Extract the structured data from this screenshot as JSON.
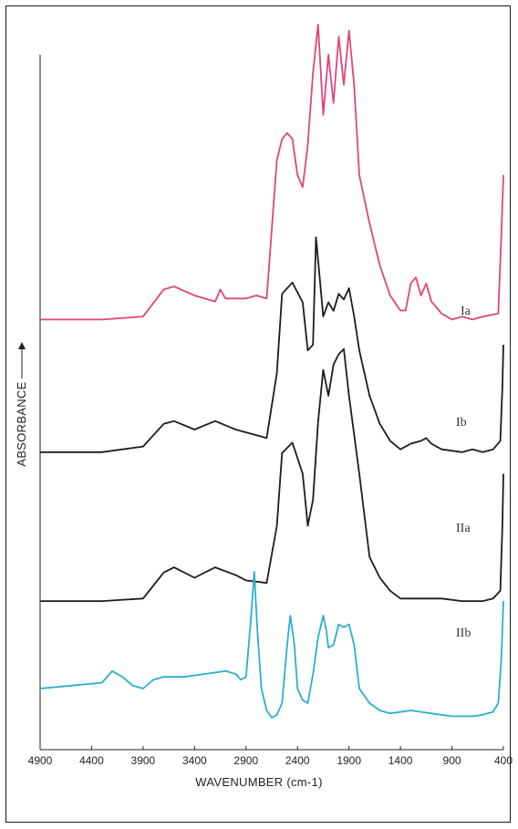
{
  "chart_data": {
    "type": "line",
    "xlabel": "WAVENUMBER (cm-1)",
    "ylabel": "ABSORBANCE",
    "x_reversed": true,
    "xlim": [
      4900,
      400
    ],
    "x_ticks": [
      4900,
      4400,
      3900,
      3400,
      2900,
      2400,
      1900,
      1400,
      900,
      400
    ],
    "y_ticks_shown": false,
    "grid": false,
    "series": [
      {
        "name": "Ia",
        "color": "#e0457a",
        "points": [
          [
            4900,
            0.02
          ],
          [
            4300,
            0.02
          ],
          [
            3900,
            0.03
          ],
          [
            3700,
            0.12
          ],
          [
            3600,
            0.13
          ],
          [
            3400,
            0.1
          ],
          [
            3200,
            0.08
          ],
          [
            3150,
            0.12
          ],
          [
            3100,
            0.09
          ],
          [
            2900,
            0.09
          ],
          [
            2800,
            0.1
          ],
          [
            2700,
            0.09
          ],
          [
            2600,
            0.55
          ],
          [
            2550,
            0.62
          ],
          [
            2500,
            0.64
          ],
          [
            2450,
            0.62
          ],
          [
            2400,
            0.5
          ],
          [
            2350,
            0.46
          ],
          [
            2300,
            0.6
          ],
          [
            2250,
            0.84
          ],
          [
            2200,
            1.0
          ],
          [
            2150,
            0.7
          ],
          [
            2100,
            0.9
          ],
          [
            2050,
            0.74
          ],
          [
            2000,
            0.96
          ],
          [
            1950,
            0.8
          ],
          [
            1900,
            0.98
          ],
          [
            1850,
            0.8
          ],
          [
            1800,
            0.5
          ],
          [
            1700,
            0.34
          ],
          [
            1600,
            0.2
          ],
          [
            1500,
            0.1
          ],
          [
            1400,
            0.05
          ],
          [
            1350,
            0.05
          ],
          [
            1300,
            0.14
          ],
          [
            1250,
            0.16
          ],
          [
            1200,
            0.1
          ],
          [
            1150,
            0.14
          ],
          [
            1100,
            0.08
          ],
          [
            1000,
            0.04
          ],
          [
            900,
            0.02
          ],
          [
            800,
            0.03
          ],
          [
            700,
            0.02
          ],
          [
            600,
            0.03
          ],
          [
            450,
            0.04
          ],
          [
            420,
            0.3
          ],
          [
            400,
            0.5
          ]
        ]
      },
      {
        "name": "Ib",
        "color": "#1c1c1c",
        "points": [
          [
            4900,
            0.02
          ],
          [
            4300,
            0.02
          ],
          [
            3900,
            0.04
          ],
          [
            3700,
            0.12
          ],
          [
            3600,
            0.13
          ],
          [
            3400,
            0.1
          ],
          [
            3200,
            0.13
          ],
          [
            3000,
            0.1
          ],
          [
            2900,
            0.09
          ],
          [
            2700,
            0.07
          ],
          [
            2600,
            0.3
          ],
          [
            2550,
            0.58
          ],
          [
            2450,
            0.62
          ],
          [
            2350,
            0.55
          ],
          [
            2300,
            0.38
          ],
          [
            2250,
            0.4
          ],
          [
            2220,
            0.78
          ],
          [
            2200,
            0.7
          ],
          [
            2150,
            0.5
          ],
          [
            2100,
            0.55
          ],
          [
            2050,
            0.52
          ],
          [
            2000,
            0.58
          ],
          [
            1950,
            0.56
          ],
          [
            1900,
            0.6
          ],
          [
            1850,
            0.5
          ],
          [
            1800,
            0.38
          ],
          [
            1700,
            0.22
          ],
          [
            1600,
            0.12
          ],
          [
            1500,
            0.06
          ],
          [
            1400,
            0.03
          ],
          [
            1300,
            0.05
          ],
          [
            1200,
            0.06
          ],
          [
            1150,
            0.07
          ],
          [
            1100,
            0.05
          ],
          [
            1000,
            0.03
          ],
          [
            800,
            0.02
          ],
          [
            700,
            0.03
          ],
          [
            600,
            0.02
          ],
          [
            500,
            0.03
          ],
          [
            430,
            0.06
          ],
          [
            410,
            0.25
          ],
          [
            400,
            0.4
          ]
        ]
      },
      {
        "name": "IIa",
        "color": "#1c1c1c",
        "points": [
          [
            4900,
            0.01
          ],
          [
            4300,
            0.01
          ],
          [
            3900,
            0.02
          ],
          [
            3700,
            0.12
          ],
          [
            3600,
            0.14
          ],
          [
            3400,
            0.1
          ],
          [
            3200,
            0.14
          ],
          [
            3000,
            0.11
          ],
          [
            2900,
            0.09
          ],
          [
            2700,
            0.08
          ],
          [
            2600,
            0.3
          ],
          [
            2550,
            0.58
          ],
          [
            2450,
            0.62
          ],
          [
            2350,
            0.5
          ],
          [
            2300,
            0.3
          ],
          [
            2250,
            0.4
          ],
          [
            2200,
            0.7
          ],
          [
            2150,
            0.9
          ],
          [
            2100,
            0.8
          ],
          [
            2050,
            0.92
          ],
          [
            2000,
            0.96
          ],
          [
            1950,
            0.98
          ],
          [
            1900,
            0.8
          ],
          [
            1800,
            0.5
          ],
          [
            1700,
            0.18
          ],
          [
            1600,
            0.1
          ],
          [
            1500,
            0.05
          ],
          [
            1400,
            0.02
          ],
          [
            1000,
            0.02
          ],
          [
            800,
            0.01
          ],
          [
            600,
            0.01
          ],
          [
            500,
            0.02
          ],
          [
            430,
            0.05
          ],
          [
            410,
            0.3
          ],
          [
            400,
            0.5
          ]
        ]
      },
      {
        "name": "IIb",
        "color": "#29b0cc",
        "points": [
          [
            4900,
            0.2
          ],
          [
            4600,
            0.22
          ],
          [
            4300,
            0.24
          ],
          [
            4200,
            0.32
          ],
          [
            4100,
            0.28
          ],
          [
            4000,
            0.22
          ],
          [
            3900,
            0.2
          ],
          [
            3800,
            0.26
          ],
          [
            3700,
            0.28
          ],
          [
            3500,
            0.28
          ],
          [
            3300,
            0.3
          ],
          [
            3100,
            0.32
          ],
          [
            3000,
            0.3
          ],
          [
            2950,
            0.26
          ],
          [
            2900,
            0.28
          ],
          [
            2850,
            0.7
          ],
          [
            2820,
            1.0
          ],
          [
            2790,
            0.6
          ],
          [
            2750,
            0.2
          ],
          [
            2700,
            0.05
          ],
          [
            2650,
            0.0
          ],
          [
            2600,
            0.02
          ],
          [
            2550,
            0.1
          ],
          [
            2500,
            0.5
          ],
          [
            2470,
            0.7
          ],
          [
            2430,
            0.5
          ],
          [
            2400,
            0.2
          ],
          [
            2350,
            0.12
          ],
          [
            2300,
            0.1
          ],
          [
            2250,
            0.3
          ],
          [
            2200,
            0.55
          ],
          [
            2150,
            0.7
          ],
          [
            2120,
            0.6
          ],
          [
            2100,
            0.48
          ],
          [
            2050,
            0.5
          ],
          [
            2000,
            0.64
          ],
          [
            1950,
            0.62
          ],
          [
            1900,
            0.64
          ],
          [
            1850,
            0.5
          ],
          [
            1800,
            0.2
          ],
          [
            1700,
            0.1
          ],
          [
            1600,
            0.05
          ],
          [
            1500,
            0.03
          ],
          [
            1300,
            0.05
          ],
          [
            1200,
            0.04
          ],
          [
            1000,
            0.02
          ],
          [
            900,
            0.01
          ],
          [
            700,
            0.01
          ],
          [
            600,
            0.02
          ],
          [
            500,
            0.04
          ],
          [
            450,
            0.1
          ],
          [
            420,
            0.4
          ],
          [
            400,
            0.8
          ]
        ]
      }
    ]
  }
}
